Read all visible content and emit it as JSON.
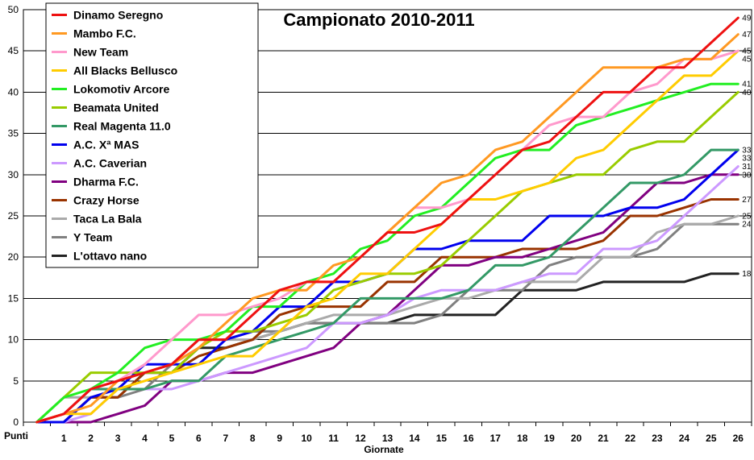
{
  "chart_data": {
    "type": "line",
    "title": "Campionato 2010-2011",
    "xlabel": "Giornate",
    "ylabel": "Punti",
    "x": [
      "",
      "1",
      "2",
      "3",
      "4",
      "5",
      "6",
      "7",
      "8",
      "9",
      "10",
      "11",
      "12",
      "13",
      "14",
      "15",
      "16",
      "17",
      "18",
      "19",
      "20",
      "21",
      "22",
      "23",
      "24",
      "25",
      "26"
    ],
    "ylim": [
      0,
      50
    ],
    "yticks": [
      "0",
      "5",
      "10",
      "15",
      "20",
      "25",
      "30",
      "35",
      "40",
      "45",
      "50"
    ],
    "grid": "horizontal",
    "legend_position": "top-left",
    "series": [
      {
        "name": "Dinamo Seregno",
        "color": "#ee1111",
        "end_label": "49",
        "values": [
          0,
          1,
          4,
          5,
          6,
          7,
          10,
          10,
          13,
          16,
          17,
          17,
          20,
          23,
          23,
          24,
          27,
          30,
          33,
          34,
          37,
          40,
          40,
          43,
          43,
          46,
          49
        ]
      },
      {
        "name": "Mambo F.C.",
        "color": "#ff9922",
        "end_label": "47",
        "values": [
          0,
          1,
          2,
          5,
          6,
          7,
          9,
          12,
          15,
          16,
          16,
          19,
          20,
          23,
          26,
          29,
          30,
          33,
          34,
          37,
          40,
          43,
          43,
          43,
          44,
          44,
          47
        ]
      },
      {
        "name": "New Team",
        "color": "#ff99cc",
        "end_label": "45",
        "values": [
          0,
          1,
          4,
          5,
          7,
          10,
          13,
          13,
          14,
          15,
          17,
          17,
          20,
          23,
          26,
          26,
          27,
          30,
          33,
          36,
          37,
          37,
          40,
          41,
          44,
          44,
          45
        ]
      },
      {
        "name": "All Blacks Bellusco",
        "color": "#ffcc00",
        "end_label": "45",
        "values": [
          0,
          1,
          1,
          4,
          5,
          6,
          7,
          8,
          8,
          11,
          14,
          15,
          18,
          18,
          21,
          24,
          27,
          27,
          28,
          29,
          32,
          33,
          36,
          39,
          42,
          42,
          45
        ]
      },
      {
        "name": "Lokomotiv Arcore",
        "color": "#22ee22",
        "end_label": "41",
        "values": [
          0,
          3,
          4,
          6,
          9,
          10,
          10,
          11,
          14,
          14,
          17,
          18,
          21,
          22,
          25,
          26,
          29,
          32,
          33,
          33,
          36,
          37,
          38,
          39,
          40,
          41,
          41
        ]
      },
      {
        "name": "Beamata United",
        "color": "#99cc00",
        "end_label": "40",
        "values": [
          0,
          3,
          6,
          6,
          6,
          6,
          9,
          11,
          11,
          12,
          13,
          16,
          17,
          18,
          18,
          19,
          22,
          25,
          28,
          29,
          30,
          30,
          33,
          34,
          34,
          37,
          40
        ]
      },
      {
        "name": "Real Magenta 11.0",
        "color": "#339966",
        "end_label": "33",
        "values": [
          0,
          1,
          4,
          4,
          4,
          5,
          5,
          8,
          9,
          10,
          11,
          12,
          15,
          15,
          15,
          15,
          16,
          19,
          19,
          20,
          23,
          26,
          29,
          29,
          30,
          33,
          33
        ]
      },
      {
        "name": "A.C. Xª MAS",
        "color": "#0000ee",
        "end_label": "33",
        "values": [
          0,
          0,
          3,
          4,
          7,
          7,
          7,
          10,
          11,
          14,
          14,
          17,
          17,
          18,
          21,
          21,
          22,
          22,
          22,
          25,
          25,
          25,
          26,
          26,
          27,
          30,
          33
        ]
      },
      {
        "name": "A.C. Caverian",
        "color": "#cc99ff",
        "end_label": "31",
        "values": [
          0,
          0,
          1,
          4,
          4,
          4,
          5,
          6,
          7,
          8,
          9,
          12,
          12,
          13,
          15,
          16,
          16,
          16,
          17,
          18,
          18,
          21,
          21,
          22,
          25,
          28,
          31
        ]
      },
      {
        "name": "Dharma F.C.",
        "color": "#800080",
        "end_label": "30",
        "values": [
          0,
          0,
          0,
          1,
          2,
          5,
          5,
          6,
          6,
          7,
          8,
          9,
          12,
          13,
          16,
          19,
          19,
          20,
          20,
          21,
          22,
          23,
          26,
          29,
          29,
          30,
          30
        ]
      },
      {
        "name": "Crazy Horse",
        "color": "#993300",
        "end_label": "27",
        "values": [
          0,
          0,
          3,
          3,
          6,
          6,
          8,
          9,
          10,
          13,
          14,
          14,
          14,
          17,
          17,
          20,
          20,
          20,
          21,
          21,
          21,
          22,
          25,
          25,
          26,
          27,
          27
        ]
      },
      {
        "name": "Taca La Bala",
        "color": "#aaaaaa",
        "end_label": "25",
        "values": [
          0,
          3,
          3,
          3,
          6,
          7,
          10,
          10,
          10,
          11,
          12,
          13,
          13,
          13,
          14,
          15,
          15,
          16,
          17,
          17,
          17,
          20,
          20,
          23,
          24,
          24,
          25
        ]
      },
      {
        "name": "Y Team",
        "color": "#808080",
        "end_label": "24",
        "values": [
          0,
          0,
          3,
          3,
          4,
          7,
          10,
          10,
          11,
          11,
          12,
          12,
          12,
          12,
          12,
          13,
          16,
          16,
          16,
          19,
          20,
          20,
          20,
          21,
          24,
          24,
          24
        ]
      },
      {
        "name": "L'ottavo nano",
        "color": "#222222",
        "end_label": "18",
        "values": [
          0,
          0,
          3,
          3,
          6,
          6,
          9,
          9,
          10,
          11,
          12,
          12,
          12,
          12,
          13,
          13,
          13,
          13,
          16,
          16,
          16,
          17,
          17,
          17,
          17,
          18,
          18
        ]
      }
    ]
  }
}
